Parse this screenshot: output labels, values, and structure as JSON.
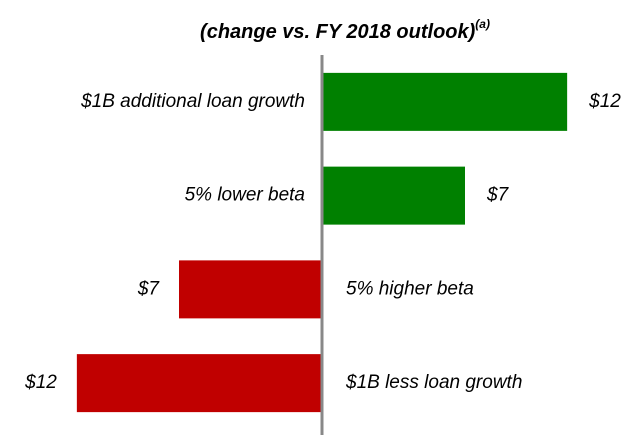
{
  "chart_data": {
    "type": "bar",
    "orientation": "horizontal",
    "title": "(change vs. FY 2018 outlook)",
    "title_superscript": "(a)",
    "categories": [
      "$1B additional loan growth",
      "5% lower beta",
      "5% higher beta",
      "$1B less loan growth"
    ],
    "values": [
      12,
      7,
      -7,
      -12
    ],
    "value_labels": [
      "$12",
      "$7",
      "$7",
      "$12"
    ],
    "colors": [
      "#008000",
      "#008000",
      "#c00000",
      "#c00000"
    ],
    "xlim": [
      -14,
      14
    ]
  }
}
